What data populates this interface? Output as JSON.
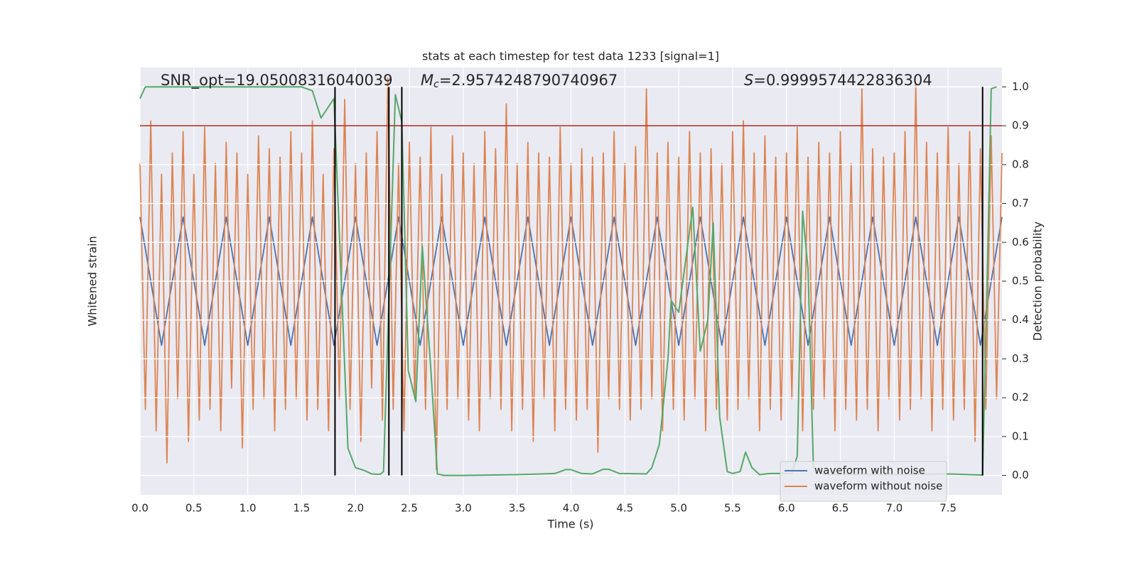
{
  "chart_data": {
    "type": "line",
    "title": "stats at each timestep for test data 1233 [signal=1]",
    "xlabel": "Time (s)",
    "ylabel": "Whitened strain",
    "y2label": "Detection probability",
    "annotations": [
      {
        "text": "SNR_opt=19.05008316040039"
      },
      {
        "symbol": "M",
        "subscript": "c",
        "text": "=2.9574248790740967"
      },
      {
        "symbol": "S",
        "text": "=0.9999574422836304"
      }
    ],
    "xlim": [
      0,
      8
    ],
    "xticks": [
      {
        "value": 0,
        "label": "0.0"
      },
      0.5,
      {
        "value": 1,
        "label": "1.0"
      },
      1.5,
      {
        "value": 2,
        "label": "2.0"
      },
      2.5,
      {
        "value": 3,
        "label": "3.0"
      },
      3.5,
      {
        "value": 4,
        "label": "4.0"
      },
      4.5,
      {
        "value": 5,
        "label": "5.0"
      },
      5.5,
      {
        "value": 6,
        "label": "6.0"
      },
      6.5,
      {
        "value": 7,
        "label": "7.0"
      },
      7.5
    ],
    "ylim": [
      -1,
      1
    ],
    "y2lim": [
      -0.05,
      1.05
    ],
    "y2ticks": [
      {
        "value": 0,
        "label": "0.0"
      },
      0.1,
      0.2,
      0.3,
      0.4,
      0.5,
      0.6,
      0.7,
      0.8,
      0.9,
      {
        "value": 1,
        "label": "1.0"
      }
    ],
    "grid": true,
    "legend": "lower right",
    "series": [
      {
        "name": "waveform with noise",
        "color": "#4c72b0",
        "x": [
          0,
          0.2,
          0.4,
          0.6,
          0.8,
          1,
          1.2,
          1.4,
          1.6,
          1.8,
          2,
          2.2,
          2.4,
          2.6,
          2.8,
          3,
          3.2,
          3.4,
          3.6,
          3.8,
          4,
          4.2,
          4.4,
          4.6,
          4.8,
          5,
          5.2,
          5.4,
          5.6,
          5.8,
          6,
          6.2,
          6.4,
          6.6,
          6.8,
          7,
          7.2,
          7.4,
          7.6,
          7.8,
          8
        ],
        "values": [
          0.3,
          -0.3,
          0.3,
          -0.3,
          0.3,
          -0.3,
          0.3,
          -0.3,
          0.3,
          -0.3,
          0.3,
          -0.3,
          0.3,
          -0.3,
          0.3,
          -0.3,
          0.3,
          -0.3,
          0.3,
          -0.3,
          0.3,
          -0.3,
          0.3,
          -0.3,
          0.3,
          -0.3,
          0.3,
          -0.3,
          0.3,
          -0.3,
          0.3,
          -0.3,
          0.3,
          -0.3,
          0.3,
          -0.3,
          0.3,
          -0.3,
          0.3,
          -0.3,
          0.3
        ]
      },
      {
        "name": "waveform without noise",
        "color": "#dd8452",
        "x": [
          0,
          0.05,
          0.1,
          0.15,
          0.2,
          0.25,
          0.3,
          0.35,
          0.4,
          0.45,
          0.5,
          0.55,
          0.6,
          0.65,
          0.7,
          0.75,
          0.8,
          0.85,
          0.9,
          0.95,
          1,
          1.05,
          1.1,
          1.15,
          1.2,
          1.25,
          1.3,
          1.35,
          1.4,
          1.45,
          1.5,
          1.55,
          1.6,
          1.65,
          1.7,
          1.75,
          1.8,
          1.85,
          1.9,
          1.95,
          2,
          2.05,
          2.1,
          2.15,
          2.2,
          2.25,
          2.3,
          2.35,
          2.4,
          2.45,
          2.5,
          2.55,
          2.6,
          2.65,
          2.7,
          2.75,
          2.8,
          2.85,
          2.9,
          2.95,
          3,
          3.05,
          3.1,
          3.15,
          3.2,
          3.25,
          3.3,
          3.35,
          3.4,
          3.45,
          3.5,
          3.55,
          3.6,
          3.65,
          3.7,
          3.75,
          3.8,
          3.85,
          3.9,
          3.95,
          4,
          4.05,
          4.1,
          4.15,
          4.2,
          4.25,
          4.3,
          4.35,
          4.4,
          4.45,
          4.5,
          4.55,
          4.6,
          4.65,
          4.7,
          4.75,
          4.8,
          4.85,
          4.9,
          4.95,
          5,
          5.05,
          5.1,
          5.15,
          5.2,
          5.25,
          5.3,
          5.35,
          5.4,
          5.45,
          5.5,
          5.55,
          5.6,
          5.65,
          5.7,
          5.75,
          5.8,
          5.85,
          5.9,
          5.95,
          6,
          6.05,
          6.1,
          6.15,
          6.2,
          6.25,
          6.3,
          6.35,
          6.4,
          6.45,
          6.5,
          6.55,
          6.6,
          6.65,
          6.7,
          6.75,
          6.8,
          6.85,
          6.9,
          6.95,
          7,
          7.05,
          7.1,
          7.15,
          7.2,
          7.25,
          7.3,
          7.35,
          7.4,
          7.45,
          7.5,
          7.55,
          7.6,
          7.65,
          7.7,
          7.75,
          7.8,
          7.85,
          7.9,
          7.95,
          8
        ],
        "values": [
          0.55,
          -0.6,
          0.75,
          -0.7,
          0.5,
          -0.85,
          0.6,
          -0.55,
          0.7,
          -0.75,
          0.5,
          -0.65,
          0.72,
          -0.6,
          0.55,
          -0.7,
          0.65,
          -0.5,
          0.6,
          -0.78,
          0.5,
          -0.6,
          0.68,
          -0.55,
          0.62,
          -0.7,
          0.58,
          -0.6,
          0.7,
          -0.55,
          0.6,
          -0.65,
          0.75,
          -0.6,
          0.5,
          -0.7,
          0.62,
          -0.55,
          0.85,
          -0.6,
          0.55,
          -0.75,
          0.6,
          -0.5,
          0.7,
          -0.65,
          0.95,
          -0.6,
          0.55,
          -0.7,
          0.65,
          -0.55,
          0.58,
          -0.6,
          0.72,
          -0.88,
          0.5,
          -0.6,
          0.68,
          -0.55,
          0.6,
          -0.65,
          0.55,
          -0.7,
          0.7,
          -0.55,
          0.62,
          -0.6,
          0.83,
          -0.7,
          0.55,
          -0.6,
          0.65,
          -0.75,
          0.6,
          -0.55,
          0.58,
          -0.7,
          0.72,
          -0.6,
          0.55,
          -0.65,
          0.62,
          -0.6,
          0.58,
          -0.8,
          0.6,
          -0.55,
          0.7,
          -0.6,
          0.55,
          -0.65,
          0.63,
          -0.6,
          0.9,
          -0.55,
          0.6,
          -0.7,
          0.65,
          -0.6,
          0.58,
          -0.65,
          0.7,
          -0.55,
          0.6,
          -0.7,
          0.62,
          -0.6,
          0.55,
          -0.65,
          0.7,
          -0.6,
          0.75,
          -0.55,
          0.6,
          -0.7,
          0.68,
          -0.6,
          0.58,
          -0.65,
          0.6,
          -0.55,
          0.72,
          -0.7,
          0.58,
          -0.6,
          0.65,
          -0.55,
          0.6,
          -0.7,
          0.7,
          -0.6,
          0.55,
          -0.65,
          0.9,
          -0.6,
          0.62,
          -0.7,
          0.58,
          -0.55,
          0.6,
          -0.65,
          0.7,
          -0.6,
          0.92,
          -0.55,
          0.65,
          -0.7,
          0.6,
          -0.6,
          0.72,
          -0.65,
          0.55,
          -0.6,
          0.7,
          -0.75,
          0.62,
          -0.6,
          0.68,
          -0.55,
          0.6
        ]
      },
      {
        "axis": "y2",
        "color": "#55a868",
        "x": [
          0,
          0.05,
          1.5,
          1.6,
          1.68,
          1.8,
          1.93,
          2.0,
          2.08,
          2.15,
          2.23,
          2.26,
          2.37,
          2.43,
          2.49,
          2.56,
          2.62,
          2.7,
          2.76,
          2.82,
          3.0,
          3.5,
          3.85,
          3.95,
          4.0,
          4.1,
          4.2,
          4.3,
          4.35,
          4.45,
          4.7,
          4.75,
          4.82,
          4.9,
          4.93,
          5.0,
          5.13,
          5.2,
          5.27,
          5.32,
          5.38,
          5.45,
          5.5,
          5.57,
          5.62,
          5.68,
          5.75,
          5.85,
          5.95,
          6.05,
          6.1,
          6.15,
          6.2,
          6.25,
          6.35,
          7.0,
          7.5,
          7.82,
          7.87,
          7.9,
          7.95
        ],
        "values": [
          0.97,
          1.0,
          1.0,
          0.99,
          0.92,
          0.97,
          0.07,
          0.02,
          0.013,
          0.004,
          0.003,
          0.01,
          0.98,
          0.91,
          0.27,
          0.19,
          0.59,
          0.27,
          0.004,
          0,
          0,
          0.002,
          0.005,
          0.015,
          0.015,
          0.005,
          0.004,
          0.016,
          0.016,
          0.005,
          0.004,
          0.02,
          0.08,
          0.3,
          0.45,
          0.42,
          0.69,
          0.32,
          0.4,
          0.65,
          0.15,
          0.01,
          0.005,
          0.01,
          0.06,
          0.02,
          0.002,
          0.005,
          0.005,
          0.005,
          0.05,
          0.68,
          0.53,
          0.02,
          0.003,
          0.002,
          0.004,
          0.001,
          0.6,
          0.995,
          1.0
        ]
      }
    ],
    "threshold": {
      "value": 0.9,
      "color": "#b03a2e"
    },
    "vlines": {
      "x": [
        1.81,
        2.31,
        2.43,
        7.82
      ],
      "ymin": 0,
      "ymax": 1,
      "color": "#000000"
    }
  }
}
